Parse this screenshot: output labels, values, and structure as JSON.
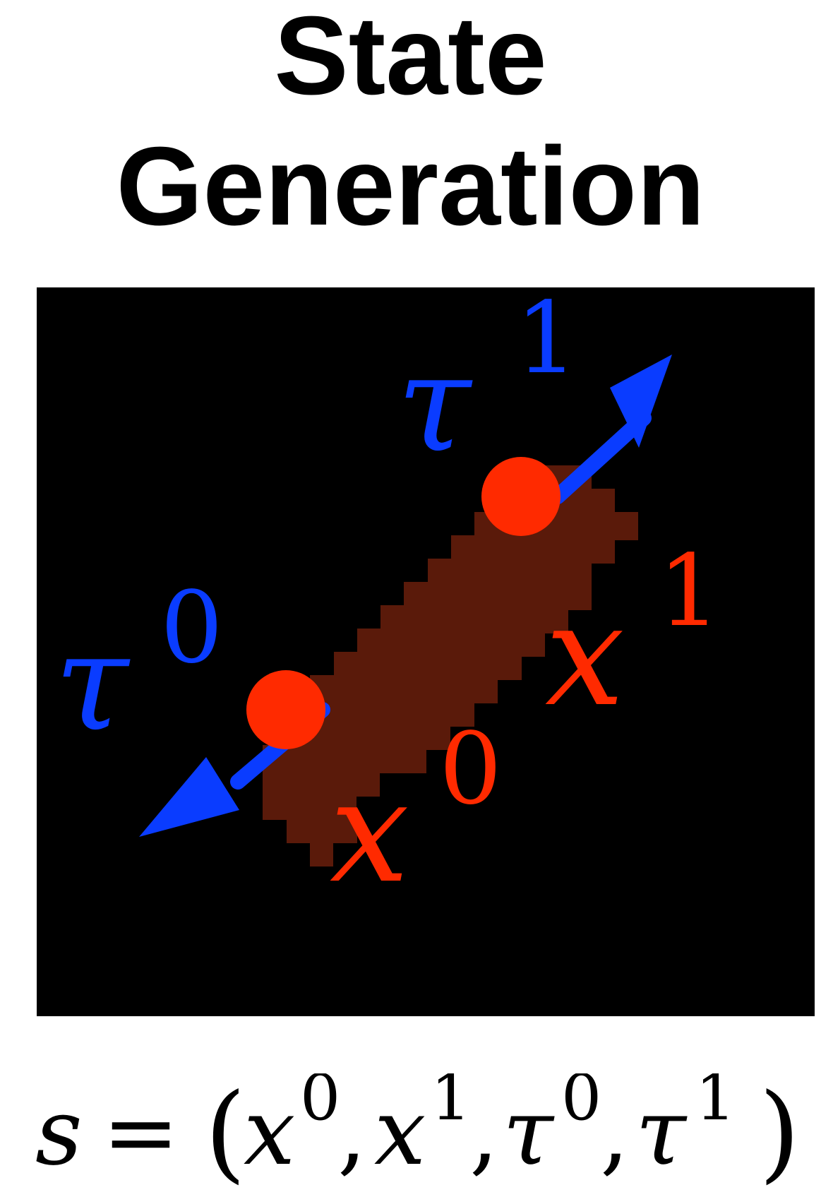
{
  "title": {
    "line1": "State",
    "line2": "Generation"
  },
  "diagram": {
    "labels": {
      "tau0_base": "τ",
      "tau0_sup": "0",
      "tau1_base": "τ",
      "tau1_sup": "1",
      "x0_base": "x",
      "x0_sup": "0",
      "x1_base": "x",
      "x1_sup": "1"
    },
    "colors": {
      "background": "#000000",
      "blob": "#5a1a0a",
      "point": "#ff2a00",
      "arrow": "#0a3cff",
      "point_label": "#ff2a00",
      "arrow_label": "#0a3cff"
    }
  },
  "formula": {
    "lhs": "s",
    "eq": "=",
    "open": "(",
    "x0_base": "x",
    "x0_sup": "0",
    "comma1": ",",
    "x1_base": "x",
    "x1_sup": "1",
    "comma2": ",",
    "tau0_base": "τ",
    "tau0_sup": "0",
    "comma3": ",",
    "tau1_base": "τ",
    "tau1_sup": "1",
    "close": ")"
  }
}
